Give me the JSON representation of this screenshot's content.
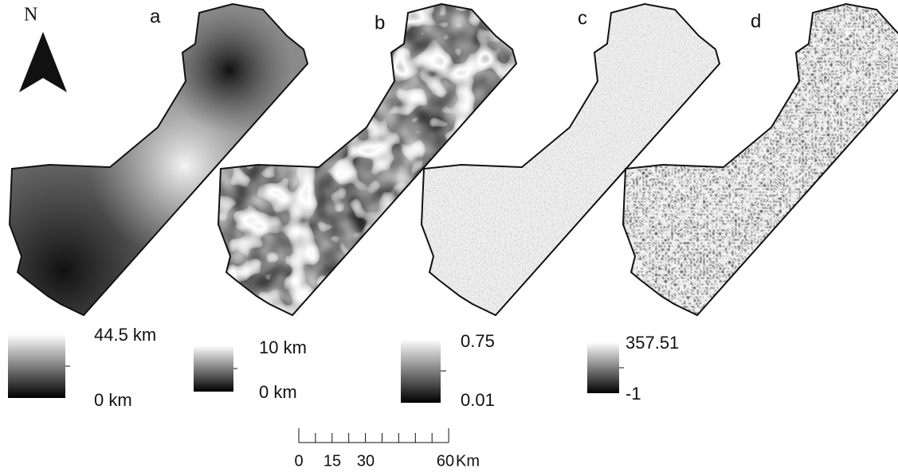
{
  "north": "N",
  "panels": [
    {
      "label": "a",
      "legend": {
        "max": "44.5 km",
        "min": "0 km"
      }
    },
    {
      "label": "b",
      "legend": {
        "max": "10 km",
        "min": "0 km"
      }
    },
    {
      "label": "c",
      "legend": {
        "max": "0.75",
        "min": "0.01"
      }
    },
    {
      "label": "d",
      "legend": {
        "max": "357.51",
        "min": "-1"
      }
    }
  ],
  "scale_bar": {
    "ticks": [
      "0",
      "15",
      "30",
      "60"
    ],
    "unit": "Km"
  }
}
